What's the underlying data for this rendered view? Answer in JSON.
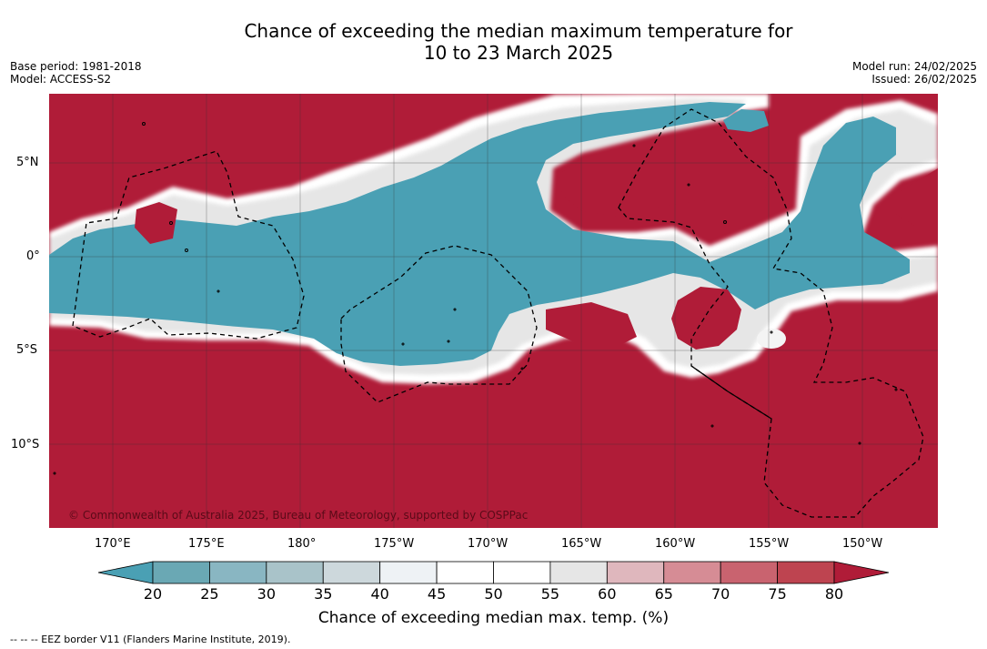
{
  "title": {
    "line1": "Chance of exceeding the median maximum temperature for",
    "line2": "10 to 23 March 2025"
  },
  "meta": {
    "base_period": "Base period: 1981-2018",
    "model": "Model: ACCESS-S2",
    "model_run": "Model run: 24/02/2025",
    "issued": "Issued: 26/02/2025"
  },
  "map": {
    "copyright": "© Commonwealth of Australia 2025, Bureau of Meteorology, supported by COSPPac",
    "lat_ticks": [
      "5°N",
      "0°",
      "5°S",
      "10°S"
    ],
    "lon_ticks": [
      "170°E",
      "175°E",
      "180°",
      "175°W",
      "170°W",
      "165°W",
      "160°W",
      "155°W",
      "150°W"
    ],
    "colors": {
      "above": "#b01c38",
      "below": "#4aa0b4",
      "neutral": "#ffffff"
    }
  },
  "colorbar": {
    "title": "Chance of exceeding median max. temp. (%)",
    "labels": [
      "20",
      "25",
      "30",
      "35",
      "40",
      "45",
      "50",
      "55",
      "60",
      "65",
      "70",
      "75",
      "80"
    ],
    "colors": [
      "#6aa8b4",
      "#89b6c2",
      "#a9c3c9",
      "#cdd8dc",
      "#eef2f5",
      "#ffffff",
      "#ffffff",
      "#e6e6e6",
      "#dfb7bd",
      "#d68c95",
      "#c9636f",
      "#be4450"
    ],
    "low_color": "#4aa0b4",
    "high_color": "#b01c38"
  },
  "footer": "-- -- -- EEZ border V11 (Flanders Marine Institute, 2019)."
}
